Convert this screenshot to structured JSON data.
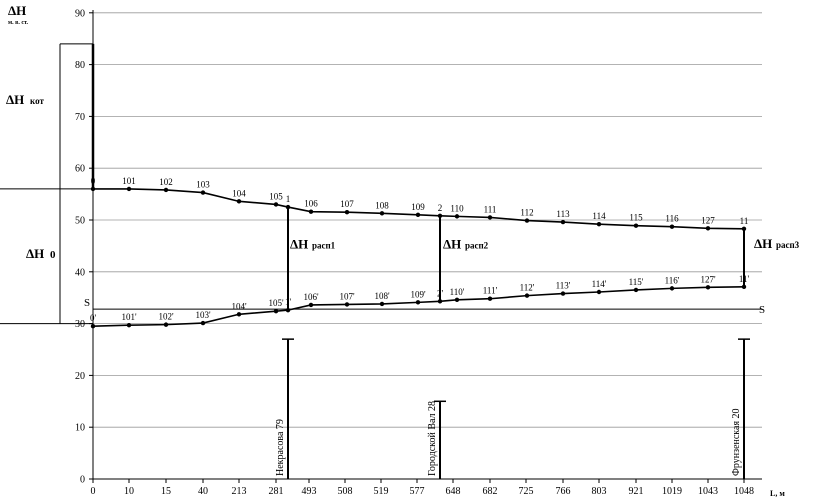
{
  "chart_data": {
    "type": "line",
    "ylabel": "ΔH",
    "ylabel_unit": "м. в. ст.",
    "xlabel": "L, м",
    "ylim": [
      0,
      90
    ],
    "yticks": [
      0,
      10,
      20,
      30,
      40,
      50,
      60,
      70,
      80,
      90
    ],
    "x_categories": [
      "0",
      "10",
      "15",
      "40",
      "213",
      "281",
      "493",
      "508",
      "519",
      "577",
      "648",
      "682",
      "725",
      "766",
      "803",
      "921",
      "1019",
      "1043",
      "1048"
    ],
    "supply_line": {
      "labels": [
        "0",
        "101",
        "102",
        "103",
        "104",
        "105",
        "1",
        "106",
        "107",
        "108",
        "109",
        "2",
        "110",
        "111",
        "112",
        "113",
        "114",
        "115",
        "116",
        "127",
        "11"
      ],
      "values": [
        56,
        56,
        55.8,
        55.3,
        53.6,
        53,
        52.5,
        51.6,
        51.5,
        51.3,
        51,
        50.8,
        50.7,
        50.5,
        49.9,
        49.6,
        49.2,
        48.9,
        48.7,
        48.4,
        48.3
      ]
    },
    "return_line": {
      "labels": [
        "0'",
        "101'",
        "102'",
        "103'",
        "104'",
        "105'",
        "1'",
        "106'",
        "107'",
        "108'",
        "109'",
        "2'",
        "110'",
        "111'",
        "112'",
        "113'",
        "114'",
        "115'",
        "116'",
        "127'",
        "11'"
      ],
      "values": [
        29.5,
        29.7,
        29.8,
        30.1,
        31.8,
        32.4,
        32.6,
        33.6,
        33.7,
        33.8,
        34.1,
        34.3,
        34.6,
        34.8,
        35.4,
        35.8,
        36.1,
        36.5,
        36.8,
        37,
        37.1
      ]
    },
    "static_line": {
      "label": "S",
      "value": 32.8
    },
    "boiler_pressure": {
      "label": "ΔH",
      "sub": "кот",
      "top": 84,
      "bottom": 56
    },
    "zero_pressure": {
      "label": "ΔH",
      "sub": "0",
      "top": 56,
      "bottom": 30
    },
    "distribution_drops": [
      {
        "label": "ΔH",
        "sub": "расп1",
        "top": 52.5,
        "bottom": 32.6
      },
      {
        "label": "ΔH",
        "sub": "расп2",
        "top": 50.8,
        "bottom": 34.3
      },
      {
        "label": "ΔH",
        "sub": "расп3",
        "top": 48.3,
        "bottom": 37.1
      }
    ],
    "buildings": [
      {
        "name": "Некрасова 79",
        "height": 27
      },
      {
        "name": "Городской Вал 28",
        "height": 15
      },
      {
        "name": "Фрунзенская 20",
        "height": 27
      }
    ]
  }
}
